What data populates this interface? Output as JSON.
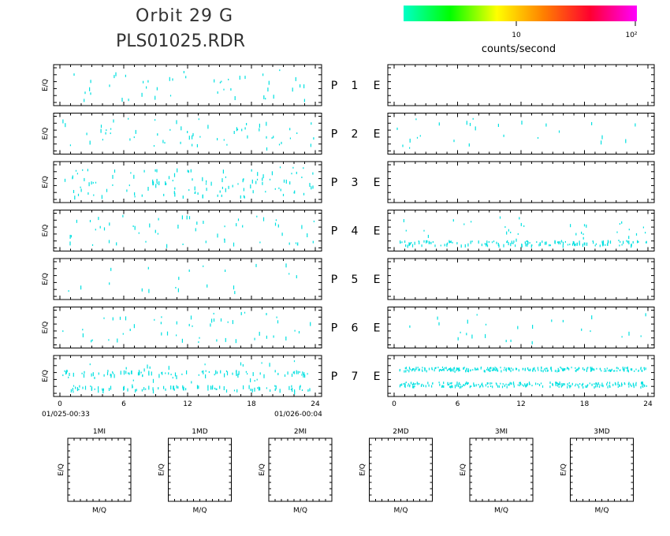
{
  "header": {
    "title_line1": "Orbit 29 G",
    "title_line2": "PLS01025.RDR"
  },
  "colorbar": {
    "label": "counts/second",
    "tick_10": "10",
    "tick_100": "10²",
    "gradient": [
      "#00ffc8",
      "#00ff00",
      "#ffff00",
      "#ff8000",
      "#ff0030",
      "#ff00ff"
    ]
  },
  "colors": {
    "data": "#00e0e0",
    "frame": "#000000"
  },
  "panel_label": "E/Q",
  "row_labels": [
    "P 1 E",
    "P 2 E",
    "P 3 E",
    "P 4 E",
    "P 5 E",
    "P 6 E",
    "P 7 E"
  ],
  "time_axis": {
    "ticks": [
      "0",
      "6",
      "12",
      "18",
      "24"
    ],
    "start_label": "01/025-00:33",
    "end_label": "01/026-00:04"
  },
  "mq_panels": {
    "names": [
      "1MI",
      "1MD",
      "2MI",
      "2MD",
      "3MI",
      "3MD"
    ],
    "xlabel": "M/Q",
    "ylabel": "E/Q"
  },
  "chart_data": [
    {
      "type": "scatter",
      "description_ref": "left column P1-P7 counts vs time (hours)",
      "xlim": [
        0,
        24
      ],
      "density_per_panel": {
        "left": [
          45,
          60,
          120,
          55,
          20,
          50,
          200
        ],
        "right": [
          0,
          25,
          0,
          180,
          0,
          25,
          500
        ]
      }
    }
  ]
}
